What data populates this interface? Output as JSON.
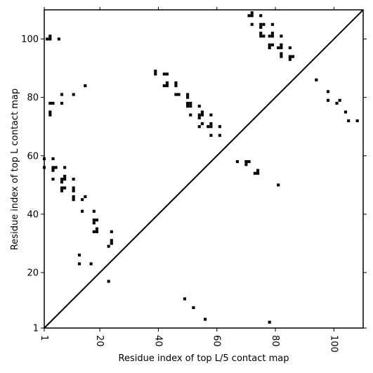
{
  "colors": {
    "background": "#ffffff",
    "mark": "#000000",
    "frame": "#000000"
  },
  "chart_data": {
    "type": "scatter",
    "marker": "square",
    "grid": false,
    "legend": false,
    "title": "",
    "xlabel": "Residue index of top L/5 contact map",
    "ylabel": "Residue index of top L contact map",
    "xlim": [
      1,
      110
    ],
    "ylim": [
      1,
      110
    ],
    "xticks": [
      1,
      20,
      40,
      60,
      80,
      100
    ],
    "yticks": [
      1,
      20,
      40,
      60,
      80,
      100
    ],
    "xtick_rotation": -90,
    "diagonal": {
      "from": [
        1,
        1
      ],
      "to": [
        110,
        110
      ]
    },
    "series": [
      {
        "points": [
          [
            49,
            11
          ],
          [
            52,
            8
          ],
          [
            56,
            4
          ],
          [
            78,
            3
          ],
          [
            81,
            50
          ],
          [
            23,
            17
          ],
          [
            13,
            23
          ],
          [
            17,
            23
          ],
          [
            13,
            26
          ],
          [
            23,
            29
          ],
          [
            24,
            30
          ],
          [
            24,
            31
          ],
          [
            24,
            34
          ],
          [
            18,
            34
          ],
          [
            19,
            34
          ],
          [
            19,
            35
          ],
          [
            18,
            37
          ],
          [
            18,
            38
          ],
          [
            19,
            38
          ],
          [
            18,
            41
          ],
          [
            14,
            41
          ],
          [
            14,
            45
          ],
          [
            15,
            46
          ],
          [
            11,
            45
          ],
          [
            11,
            46
          ],
          [
            11,
            48
          ],
          [
            11,
            49
          ],
          [
            7,
            48
          ],
          [
            7,
            49
          ],
          [
            8,
            49
          ],
          [
            7,
            51
          ],
          [
            7,
            52
          ],
          [
            8,
            52
          ],
          [
            8,
            53
          ],
          [
            11,
            52
          ],
          [
            4,
            52
          ],
          [
            4,
            55
          ],
          [
            4,
            56
          ],
          [
            5,
            56
          ],
          [
            8,
            56
          ],
          [
            1,
            56
          ],
          [
            1,
            59
          ],
          [
            4,
            59
          ],
          [
            3,
            74
          ],
          [
            3,
            75
          ],
          [
            3,
            78
          ],
          [
            4,
            78
          ],
          [
            7,
            78
          ],
          [
            7,
            81
          ],
          [
            11,
            81
          ],
          [
            15,
            84
          ],
          [
            6,
            100
          ],
          [
            2,
            100
          ],
          [
            3,
            100
          ],
          [
            3,
            101
          ],
          [
            39,
            88
          ],
          [
            39,
            89
          ],
          [
            42,
            88
          ],
          [
            43,
            88
          ],
          [
            42,
            84
          ],
          [
            43,
            84
          ],
          [
            43,
            85
          ],
          [
            46,
            84
          ],
          [
            46,
            85
          ],
          [
            46,
            81
          ],
          [
            47,
            81
          ],
          [
            50,
            80
          ],
          [
            50,
            81
          ],
          [
            50,
            78
          ],
          [
            51,
            78
          ],
          [
            50,
            77
          ],
          [
            51,
            77
          ],
          [
            51,
            74
          ],
          [
            54,
            77
          ],
          [
            54,
            74
          ],
          [
            55,
            74
          ],
          [
            54,
            73
          ],
          [
            55,
            75
          ],
          [
            54,
            70
          ],
          [
            55,
            71
          ],
          [
            57,
            70
          ],
          [
            58,
            70
          ],
          [
            58,
            71
          ],
          [
            58,
            74
          ],
          [
            58,
            67
          ],
          [
            61,
            70
          ],
          [
            61,
            67
          ],
          [
            67,
            58
          ],
          [
            70,
            57
          ],
          [
            70,
            58
          ],
          [
            71,
            58
          ],
          [
            73,
            54
          ],
          [
            74,
            54
          ],
          [
            74,
            55
          ],
          [
            71,
            108
          ],
          [
            72,
            108
          ],
          [
            72,
            109
          ],
          [
            75,
            108
          ],
          [
            72,
            105
          ],
          [
            75,
            105
          ],
          [
            76,
            105
          ],
          [
            75,
            104
          ],
          [
            75,
            102
          ],
          [
            75,
            101
          ],
          [
            76,
            101
          ],
          [
            78,
            101
          ],
          [
            79,
            101
          ],
          [
            79,
            102
          ],
          [
            79,
            105
          ],
          [
            82,
            101
          ],
          [
            78,
            98
          ],
          [
            79,
            98
          ],
          [
            78,
            97
          ],
          [
            81,
            97
          ],
          [
            82,
            97
          ],
          [
            82,
            98
          ],
          [
            82,
            95
          ],
          [
            82,
            94
          ],
          [
            85,
            97
          ],
          [
            85,
            94
          ],
          [
            86,
            94
          ],
          [
            85,
            93
          ],
          [
            94,
            86
          ],
          [
            98,
            82
          ],
          [
            98,
            79
          ],
          [
            101,
            78
          ],
          [
            102,
            79
          ],
          [
            104,
            75
          ],
          [
            105,
            72
          ],
          [
            108,
            72
          ]
        ]
      }
    ]
  }
}
